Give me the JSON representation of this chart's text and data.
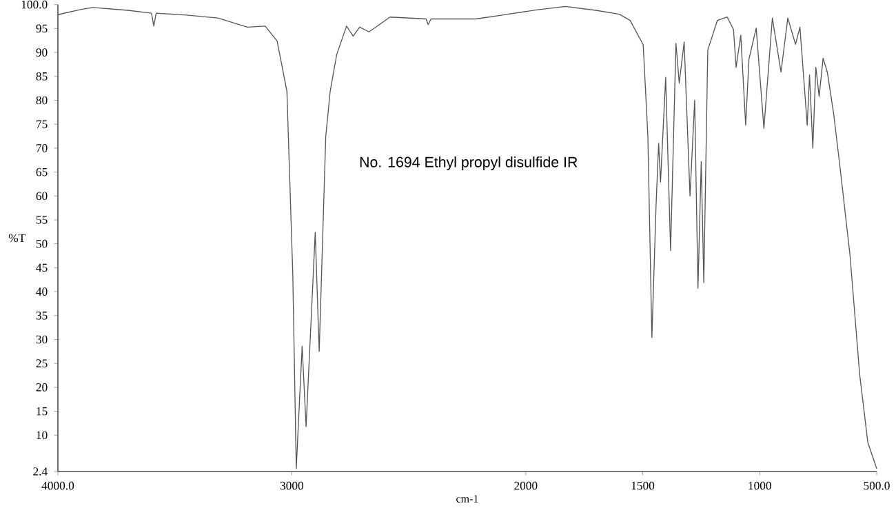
{
  "chart_data": {
    "type": "line",
    "xlabel": "cm-1",
    "ylabel": "%T",
    "annotations": [
      "No. 1694  Ethyl propyl disulfide IR"
    ],
    "xlim": [
      4000,
      500
    ],
    "ylim": [
      2.4,
      100
    ],
    "xticks": [
      {
        "value": 4000,
        "label": "4000.0"
      },
      3000,
      2000,
      1500,
      1000,
      {
        "value": 500,
        "label": "500.0"
      }
    ],
    "yticks": [
      {
        "value": 2.4,
        "label": "2.4"
      },
      10,
      15,
      20,
      25,
      30,
      35,
      40,
      45,
      50,
      55,
      60,
      65,
      70,
      75,
      80,
      85,
      90,
      95,
      {
        "value": 100,
        "label": "100.0"
      }
    ],
    "grid": false,
    "marker": "none",
    "line_style": "solid",
    "series": [
      {
        "color": "#555555",
        "x": [
          4000,
          3900,
          3850,
          3700,
          3600,
          3590,
          3580,
          3450,
          3316,
          3190,
          3114,
          3063,
          3021,
          2996,
          2981,
          2956,
          2939,
          2900,
          2883,
          2855,
          2836,
          2808,
          2766,
          2738,
          2710,
          2670,
          2580,
          2426,
          2417,
          2405,
          2214,
          2100,
          1954,
          1830,
          1700,
          1600,
          1554,
          1498,
          1478,
          1461,
          1443,
          1432,
          1424,
          1402,
          1381,
          1358,
          1344,
          1323,
          1298,
          1278,
          1264,
          1250,
          1239,
          1222,
          1181,
          1139,
          1112,
          1101,
          1081,
          1060,
          1046,
          1015,
          982,
          946,
          909,
          880,
          847,
          828,
          797,
          787,
          773,
          760,
          746,
          729,
          711,
          684,
          656,
          614,
          573,
          538,
          500
        ],
        "values": [
          97.9,
          99.0,
          99.4,
          98.8,
          98.2,
          95.5,
          98.2,
          97.8,
          97.2,
          95.3,
          95.5,
          92.4,
          81.9,
          43.8,
          3.0,
          28.6,
          11.8,
          52.4,
          27.5,
          72.4,
          81.9,
          89.6,
          95.5,
          93.4,
          95.3,
          94.3,
          97.4,
          97.0,
          95.8,
          97.0,
          97.0,
          97.8,
          98.9,
          99.6,
          98.8,
          98.0,
          96.7,
          91.6,
          72.4,
          30.4,
          58.1,
          71.0,
          62.9,
          84.8,
          48.6,
          91.9,
          83.6,
          92.2,
          60.0,
          80.0,
          40.7,
          67.2,
          41.9,
          90.5,
          96.7,
          97.4,
          94.8,
          86.9,
          93.6,
          74.8,
          88.6,
          95.1,
          74.1,
          97.2,
          85.9,
          97.2,
          91.7,
          95.3,
          74.8,
          85.3,
          70.0,
          86.9,
          80.8,
          88.8,
          85.9,
          77.2,
          65.7,
          47.6,
          22.8,
          8.5,
          3.0
        ]
      }
    ]
  }
}
